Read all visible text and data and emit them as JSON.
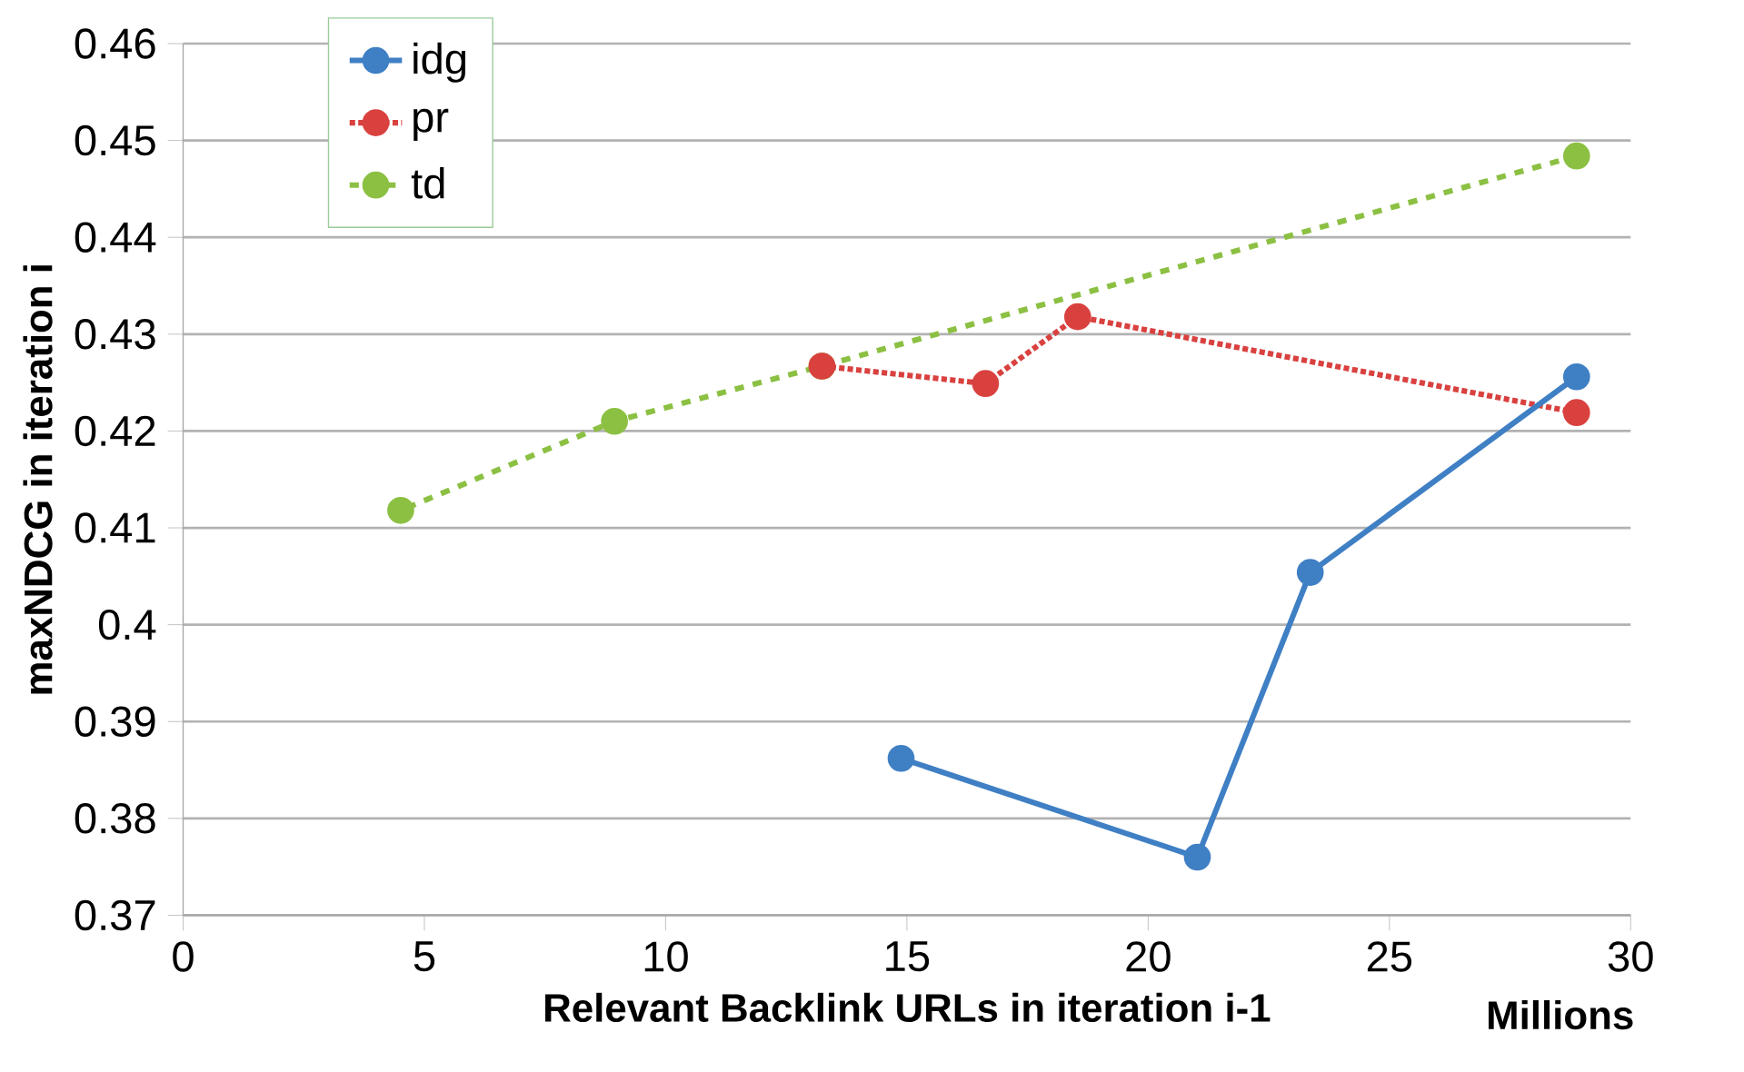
{
  "chart_data": {
    "type": "line",
    "xlabel": "Relevant Backlink URLs in iteration i-1",
    "ylabel": "maxNDCG in iteration i",
    "series": [
      {
        "name": "idg",
        "color": "#3f7fc4",
        "line_style": "solid",
        "x": [
          28.88,
          23.36,
          21.02,
          14.88
        ],
        "values": [
          0.4256,
          0.4054,
          0.376,
          0.3862
        ]
      },
      {
        "name": "pr",
        "color": "#d9413f",
        "line_style": "dotted",
        "x": [
          28.88,
          18.54,
          16.63,
          13.24
        ],
        "values": [
          0.4219,
          0.4318,
          0.4249,
          0.4267
        ]
      },
      {
        "name": "td",
        "color": "#8cc043",
        "line_style": "dashed",
        "x": [
          28.88,
          13.24,
          8.94,
          4.51
        ],
        "values": [
          0.4484,
          0.4267,
          0.421,
          0.4118
        ]
      }
    ],
    "xlim": [
      0,
      30
    ],
    "ylim": [
      0.37,
      0.46
    ],
    "xticks": [
      0,
      5,
      10,
      15,
      20,
      25,
      30
    ],
    "yticks": [
      0.37,
      0.38,
      0.39,
      0.4,
      0.41,
      0.42,
      0.43,
      0.44,
      0.45,
      0.46
    ],
    "grid": "y",
    "legend": "top left",
    "marker": "circle",
    "annotations": [
      "Millions"
    ]
  }
}
